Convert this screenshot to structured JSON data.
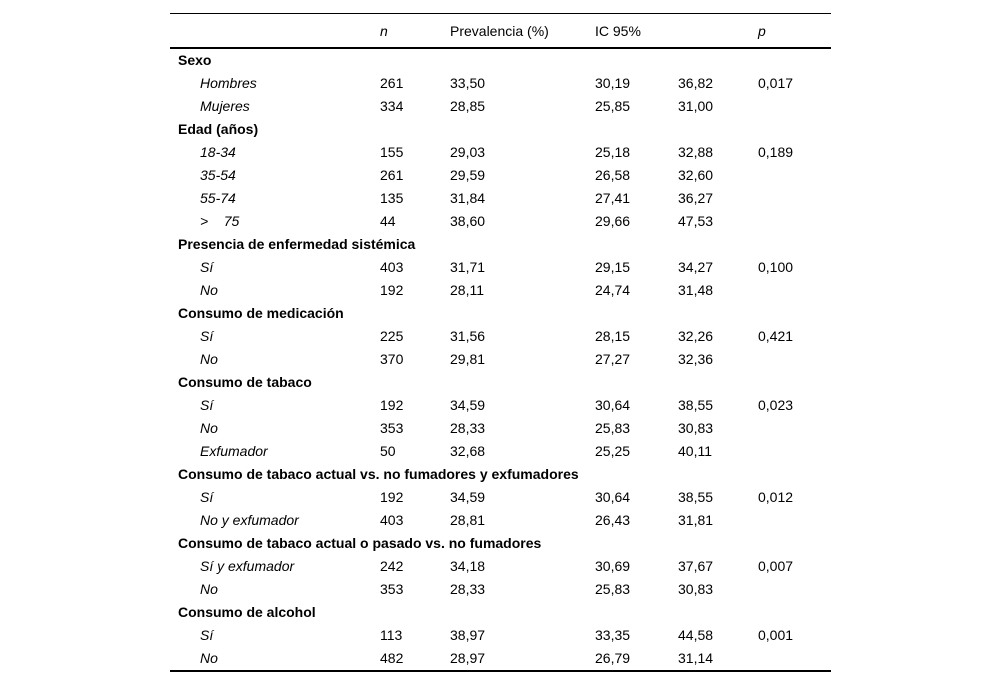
{
  "table": {
    "header": {
      "n": "n",
      "prevalencia": "Prevalencia (%)",
      "ic": "IC 95%",
      "p": "p"
    },
    "rows": [
      {
        "label": "Sexo"
      },
      {
        "label": "Hombres",
        "n": "261",
        "prev": "33,50",
        "ic1": "30,19",
        "ic2": "36,82",
        "p": "0,017"
      },
      {
        "label": "Mujeres",
        "n": "334",
        "prev": "28,85",
        "ic1": "25,85",
        "ic2": "31,00",
        "p": ""
      },
      {
        "label": "Edad (años)"
      },
      {
        "label": "18-34",
        "n": "155",
        "prev": "29,03",
        "ic1": "25,18",
        "ic2": "32,88",
        "p": "0,189"
      },
      {
        "label": "35-54",
        "n": "261",
        "prev": "29,59",
        "ic1": "26,58",
        "ic2": "32,60",
        "p": ""
      },
      {
        "label": "55-74",
        "n": "135",
        "prev": "31,84",
        "ic1": "27,41",
        "ic2": "36,27",
        "p": ""
      },
      {
        "label": ">    75",
        "n": "44",
        "prev": "38,60",
        "ic1": "29,66",
        "ic2": "47,53",
        "p": ""
      },
      {
        "label": "Presencia de enfermedad sistémica"
      },
      {
        "label": "Sí",
        "n": "403",
        "prev": "31,71",
        "ic1": "29,15",
        "ic2": "34,27",
        "p": "0,100"
      },
      {
        "label": "No",
        "n": "192",
        "prev": "28,11",
        "ic1": "24,74",
        "ic2": "31,48",
        "p": ""
      },
      {
        "label": "Consumo de medicación"
      },
      {
        "label": "Sí",
        "n": "225",
        "prev": "31,56",
        "ic1": "28,15",
        "ic2": "32,26",
        "p": "0,421"
      },
      {
        "label": "No",
        "n": "370",
        "prev": "29,81",
        "ic1": "27,27",
        "ic2": "32,36",
        "p": ""
      },
      {
        "label": "Consumo de tabaco"
      },
      {
        "label": "Sí",
        "n": "192",
        "prev": "34,59",
        "ic1": "30,64",
        "ic2": "38,55",
        "p": "0,023"
      },
      {
        "label": "No",
        "n": "353",
        "prev": "28,33",
        "ic1": "25,83",
        "ic2": "30,83",
        "p": ""
      },
      {
        "label": "Exfumador",
        "n": "50",
        "prev": "32,68",
        "ic1": "25,25",
        "ic2": "40,11",
        "p": ""
      },
      {
        "label": "Consumo de tabaco actual vs. no fumadores y exfumadores"
      },
      {
        "label": "Sí",
        "n": "192",
        "prev": "34,59",
        "ic1": "30,64",
        "ic2": "38,55",
        "p": "0,012"
      },
      {
        "label": "No y exfumador",
        "n": "403",
        "prev": "28,81",
        "ic1": "26,43",
        "ic2": "31,81",
        "p": ""
      },
      {
        "label": "Consumo de tabaco actual o pasado vs. no fumadores"
      },
      {
        "label": "Sí y exfumador",
        "n": "242",
        "prev": "34,18",
        "ic1": "30,69",
        "ic2": "37,67",
        "p": "0,007"
      },
      {
        "label": "No",
        "n": "353",
        "prev": "28,33",
        "ic1": "25,83",
        "ic2": "30,83",
        "p": ""
      },
      {
        "label": "Consumo de alcohol"
      },
      {
        "label": "Sí",
        "n": "113",
        "prev": "38,97",
        "ic1": "33,35",
        "ic2": "44,58",
        "p": "0,001"
      },
      {
        "label": "No",
        "n": "482",
        "prev": "28,97",
        "ic1": "26,79",
        "ic2": "31,14",
        "p": ""
      }
    ]
  }
}
